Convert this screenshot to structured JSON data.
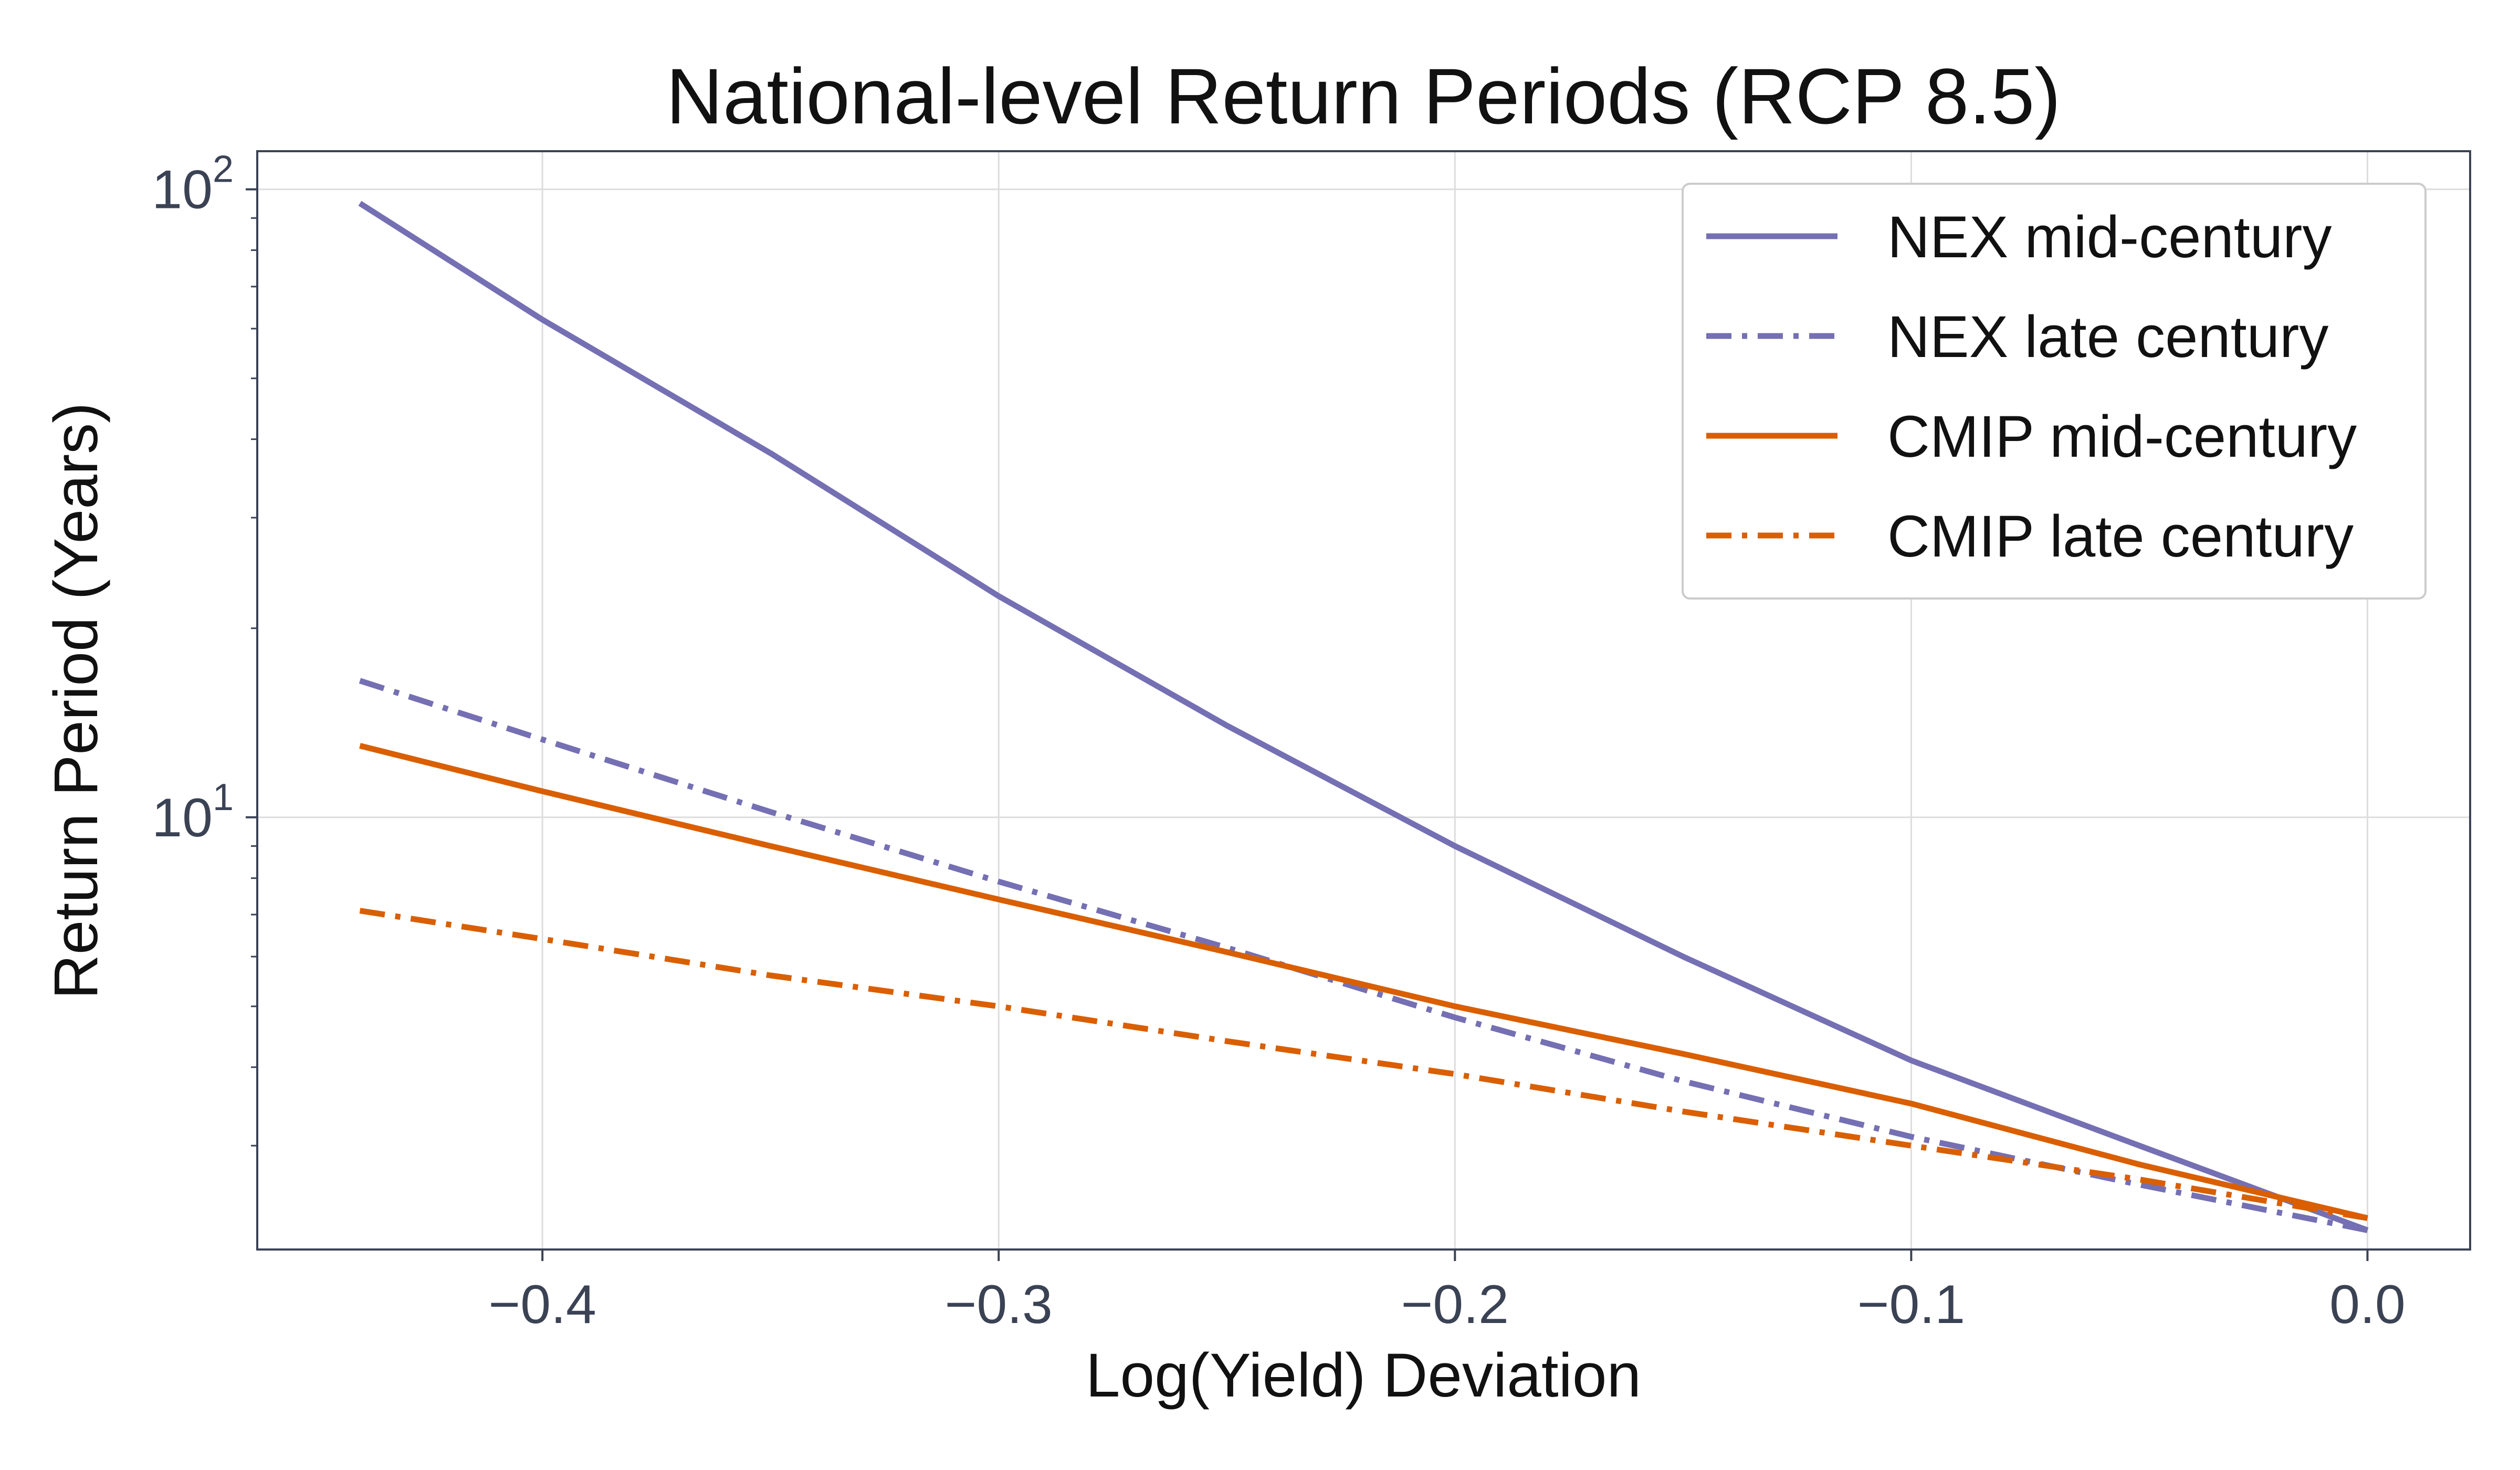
{
  "chart_data": {
    "type": "line",
    "title": "National-level Return Periods (RCP 8.5)",
    "xlabel": "Log(Yield) Deviation",
    "ylabel": "Return Period (Years)",
    "xlim": [
      -0.4625,
      0.0225
    ],
    "ylim": [
      2.05,
      115
    ],
    "yscale": "log",
    "grid": true,
    "legend_position": "top-right",
    "x_ticks": [
      -0.4,
      -0.3,
      -0.2,
      -0.1,
      0.0
    ],
    "x_tick_labels": [
      "−0.4",
      "−0.3",
      "−0.2",
      "−0.1",
      "0.0"
    ],
    "y_ticks": [
      {
        "value": 10,
        "base": "10",
        "exp": "1"
      },
      {
        "value": 100,
        "base": "10",
        "exp": "2"
      }
    ],
    "series": [
      {
        "name": "NEX mid-century",
        "color": "#7570b3",
        "dash": "solid",
        "x": [
          -0.44,
          -0.4,
          -0.35,
          -0.3,
          -0.25,
          -0.2,
          -0.15,
          -0.1,
          -0.05,
          0.0
        ],
        "y": [
          95,
          62,
          38,
          22.5,
          14,
          9,
          6,
          4.1,
          3.0,
          2.2
        ]
      },
      {
        "name": "NEX late century",
        "color": "#7570b3",
        "dash": "dashdot",
        "x": [
          -0.44,
          -0.4,
          -0.35,
          -0.3,
          -0.25,
          -0.2,
          -0.15,
          -0.1,
          -0.05,
          0.0
        ],
        "y": [
          16.5,
          13.3,
          10.2,
          7.9,
          6.2,
          4.8,
          3.8,
          3.1,
          2.6,
          2.2
        ]
      },
      {
        "name": "CMIP mid-century",
        "color": "#d95f02",
        "dash": "solid",
        "x": [
          -0.44,
          -0.4,
          -0.35,
          -0.3,
          -0.25,
          -0.2,
          -0.15,
          -0.1,
          -0.05,
          0.0
        ],
        "y": [
          13,
          11,
          9,
          7.4,
          6.1,
          5.0,
          4.2,
          3.5,
          2.8,
          2.3
        ]
      },
      {
        "name": "CMIP late century",
        "color": "#d95f02",
        "dash": "dashdot",
        "x": [
          -0.44,
          -0.4,
          -0.35,
          -0.3,
          -0.25,
          -0.2,
          -0.15,
          -0.1,
          -0.05,
          0.0
        ],
        "y": [
          7.1,
          6.4,
          5.6,
          5.0,
          4.4,
          3.9,
          3.4,
          3.0,
          2.65,
          2.3
        ]
      }
    ]
  }
}
